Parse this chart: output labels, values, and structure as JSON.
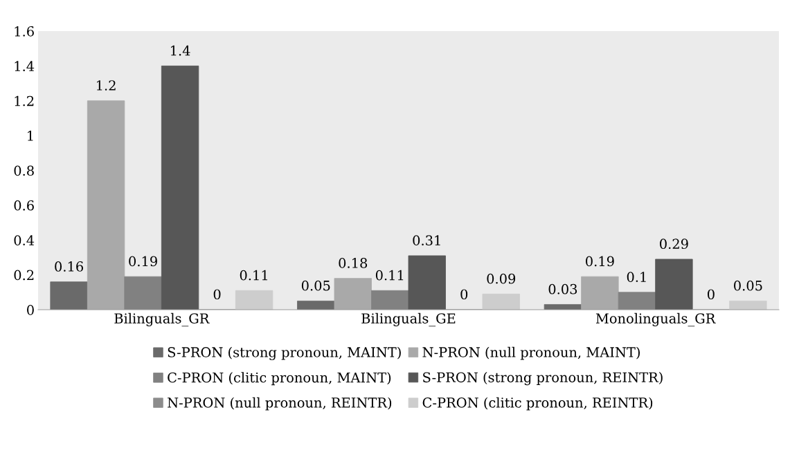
{
  "chart_data": {
    "type": "bar",
    "categories": [
      "Bilinguals_GR",
      "Bilinguals_GE",
      "Monolinguals_GR"
    ],
    "series": [
      {
        "name": "S-PRON (strong pronoun, MAINT)",
        "color": "#6a6a6a",
        "values": [
          0.16,
          0.05,
          0.03
        ]
      },
      {
        "name": "N-PRON (null pronoun, MAINT)",
        "color": "#a9a9a9",
        "values": [
          1.2,
          0.18,
          0.19
        ]
      },
      {
        "name": "C-PRON (clitic pronoun, MAINT)",
        "color": "#818181",
        "values": [
          0.19,
          0.11,
          0.1
        ]
      },
      {
        "name": "S-PRON (strong pronoun, REINTR)",
        "color": "#575757",
        "values": [
          1.4,
          0.31,
          0.29
        ]
      },
      {
        "name": "N-PRON (null pronoun, REINTR)",
        "color": "#8c8c8c",
        "values": [
          0,
          0,
          0
        ]
      },
      {
        "name": "C-PRON (clitic pronoun, REINTR)",
        "color": "#cdcdcd",
        "values": [
          0.11,
          0.09,
          0.05
        ]
      }
    ],
    "ylim": [
      0,
      1.6
    ],
    "yticks": [
      0,
      0.2,
      0.4,
      0.6,
      0.8,
      1,
      1.2,
      1.4,
      1.6
    ],
    "grid": false,
    "legend": "bottom",
    "data_labels": true
  }
}
